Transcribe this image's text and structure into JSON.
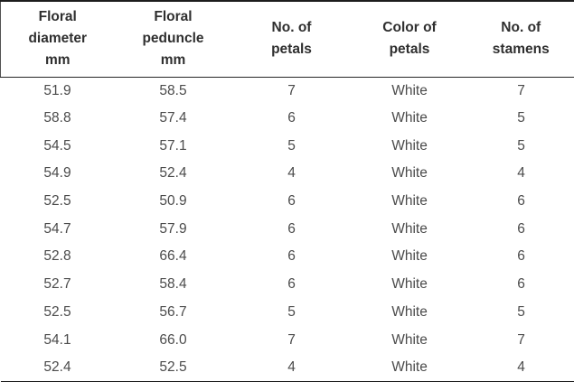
{
  "colors": {
    "background": "#ffffff",
    "rule_dark": "#1d1d1d",
    "rule_side": "#525252",
    "header_text": "#2f2f2f",
    "body_text": "#4b4b4b"
  },
  "table": {
    "columns": [
      {
        "id": "floral-diameter",
        "label": "Floral diameter mm",
        "lines": [
          "Floral",
          "diameter",
          "mm"
        ]
      },
      {
        "id": "floral-peduncle",
        "label": "Floral peduncle mm",
        "lines": [
          "Floral",
          "peduncle",
          "mm"
        ]
      },
      {
        "id": "no-of-petals",
        "label": "No. of petals",
        "lines": [
          "No. of",
          "petals"
        ]
      },
      {
        "id": "color-of-petals",
        "label": "Color of petals",
        "lines": [
          "Color of",
          "petals"
        ]
      },
      {
        "id": "no-of-stamens",
        "label": "No. of stamens",
        "lines": [
          "No. of",
          "stamens"
        ]
      }
    ],
    "rows": [
      [
        "51.9",
        "58.5",
        "7",
        "White",
        "7"
      ],
      [
        "58.8",
        "57.4",
        "6",
        "White",
        "5"
      ],
      [
        "54.5",
        "57.1",
        "5",
        "White",
        "5"
      ],
      [
        "54.9",
        "52.4",
        "4",
        "White",
        "4"
      ],
      [
        "52.5",
        "50.9",
        "6",
        "White",
        "6"
      ],
      [
        "54.7",
        "57.9",
        "6",
        "White",
        "6"
      ],
      [
        "52.8",
        "66.4",
        "6",
        "White",
        "6"
      ],
      [
        "52.7",
        "58.4",
        "6",
        "White",
        "6"
      ],
      [
        "52.5",
        "56.7",
        "5",
        "White",
        "5"
      ],
      [
        "54.1",
        "66.0",
        "7",
        "White",
        "7"
      ],
      [
        "52.4",
        "52.5",
        "4",
        "White",
        "4"
      ]
    ]
  }
}
